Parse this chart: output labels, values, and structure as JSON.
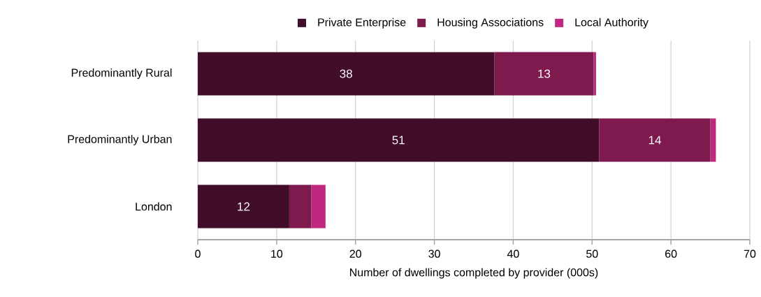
{
  "chart_data": {
    "type": "bar",
    "orientation": "horizontal",
    "stacked": true,
    "categories": [
      "Predominantly Rural",
      "Predominantly Urban",
      "London"
    ],
    "series": [
      {
        "name": "Private Enterprise",
        "color": "#420d28",
        "values": [
          37.6,
          50.9,
          11.6
        ],
        "value_labels": [
          "38",
          "51",
          "12"
        ]
      },
      {
        "name": "Housing Associations",
        "color": "#7e1a4e",
        "values": [
          12.6,
          14.1,
          2.8
        ],
        "value_labels": [
          "13",
          "14",
          null
        ]
      },
      {
        "name": "Local Authority",
        "color": "#c0287f",
        "values": [
          0.3,
          0.7,
          1.8
        ],
        "value_labels": [
          null,
          null,
          null
        ]
      }
    ],
    "xlim": [
      0,
      70
    ],
    "xticks": [
      0,
      10,
      20,
      30,
      40,
      50,
      60,
      70
    ],
    "xlabel": "Number of dwellings completed by provider (000s)",
    "grid": "x",
    "legend": "top"
  }
}
